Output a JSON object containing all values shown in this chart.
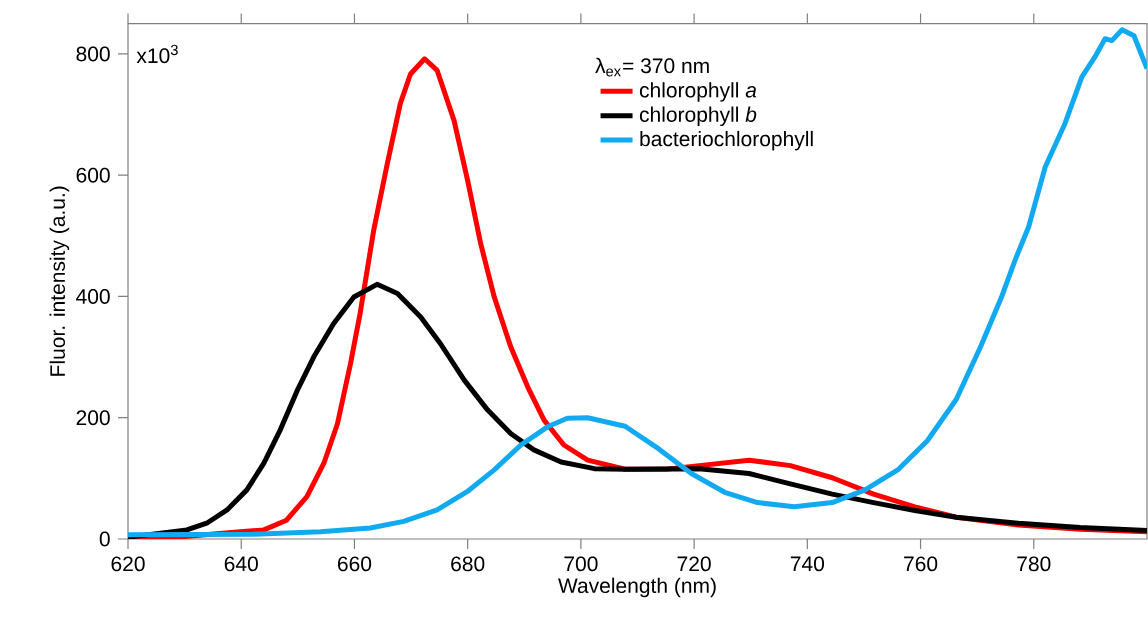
{
  "chart_data": {
    "type": "line",
    "xlabel": "Wavelength (nm)",
    "ylabel": "Fluor. intensity (a.u.)",
    "legend_title": "λ$_{ex}$= 370 nm",
    "legend": "top",
    "xlim": [
      620,
      800
    ],
    "ylim": [
      0,
      850
    ],
    "xticks": [
      620,
      640,
      660,
      680,
      700,
      720,
      740,
      760,
      780
    ],
    "yticks": [
      0,
      200,
      400,
      600,
      800
    ],
    "annotations": [
      "x10$^{3}$"
    ],
    "grid": false,
    "line_style": "solid",
    "marker": "none",
    "series": [
      {
        "name": "chlorophyll *a*",
        "color": "#ff0000",
        "x": [
          620,
          630,
          639.8,
          644,
          648,
          651.6,
          654.6,
          657,
          659.3,
          661,
          663.4,
          665.8,
          668.1,
          669.9,
          672.4,
          674.6,
          677.6,
          680,
          682.3,
          684.7,
          687.6,
          690.6,
          693.5,
          697,
          701.2,
          707.8,
          715.1,
          720.9,
          729.7,
          737,
          744.4,
          751.7,
          759,
          766.3,
          777.3,
          788.2,
          800
        ],
        "values": [
          0,
          4,
          12,
          15,
          31,
          70,
          125,
          190,
          289,
          372,
          509,
          619,
          718,
          767,
          792,
          773,
          690,
          591,
          487,
          399,
          317,
          251,
          196,
          155,
          130,
          115,
          115,
          121,
          130,
          121,
          101,
          74,
          53,
          36,
          23,
          16,
          12
        ]
      },
      {
        "name": "chlorophyll *b*",
        "color": "#000000",
        "x": [
          620,
          630.4,
          633.9,
          637.5,
          641,
          644,
          646.9,
          649.9,
          652.8,
          656.3,
          659.9,
          664,
          667.6,
          671.7,
          675.2,
          679.4,
          683.5,
          687.6,
          691.7,
          696.5,
          702.4,
          707.8,
          720.9,
          729.7,
          737,
          744.4,
          751.7,
          759,
          766.3,
          777.3,
          788.2,
          800
        ],
        "values": [
          3,
          15,
          26,
          48,
          81,
          125,
          180,
          245,
          300,
          355,
          399,
          420,
          405,
          366,
          322,
          262,
          213,
          174,
          147,
          127,
          116,
          115,
          116,
          108,
          91,
          74,
          60,
          47,
          36,
          26,
          19,
          14
        ]
      },
      {
        "name": "bacteriochlorophyll",
        "color": "#11aaf0",
        "x": [
          620,
          642.2,
          654,
          662.8,
          668.7,
          674.6,
          679.9,
          684.7,
          689.4,
          694.1,
          697.6,
          701.2,
          707.8,
          713.7,
          719.5,
          725.4,
          731.2,
          737.7,
          744.4,
          750.2,
          756.1,
          761.2,
          766.3,
          770.7,
          774.3,
          776.7,
          779.1,
          782,
          785.5,
          788.5,
          790.8,
          792.6,
          793.8,
          795.6,
          797.7,
          800
        ],
        "values": [
          7,
          8,
          12,
          18,
          29,
          48,
          78,
          114,
          155,
          185,
          199,
          200,
          186,
          149,
          108,
          77,
          60,
          53,
          60,
          81,
          115,
          162,
          230,
          319,
          399,
          460,
          515,
          613,
          685,
          762,
          795,
          825,
          822,
          840,
          830,
          776
        ]
      }
    ]
  }
}
